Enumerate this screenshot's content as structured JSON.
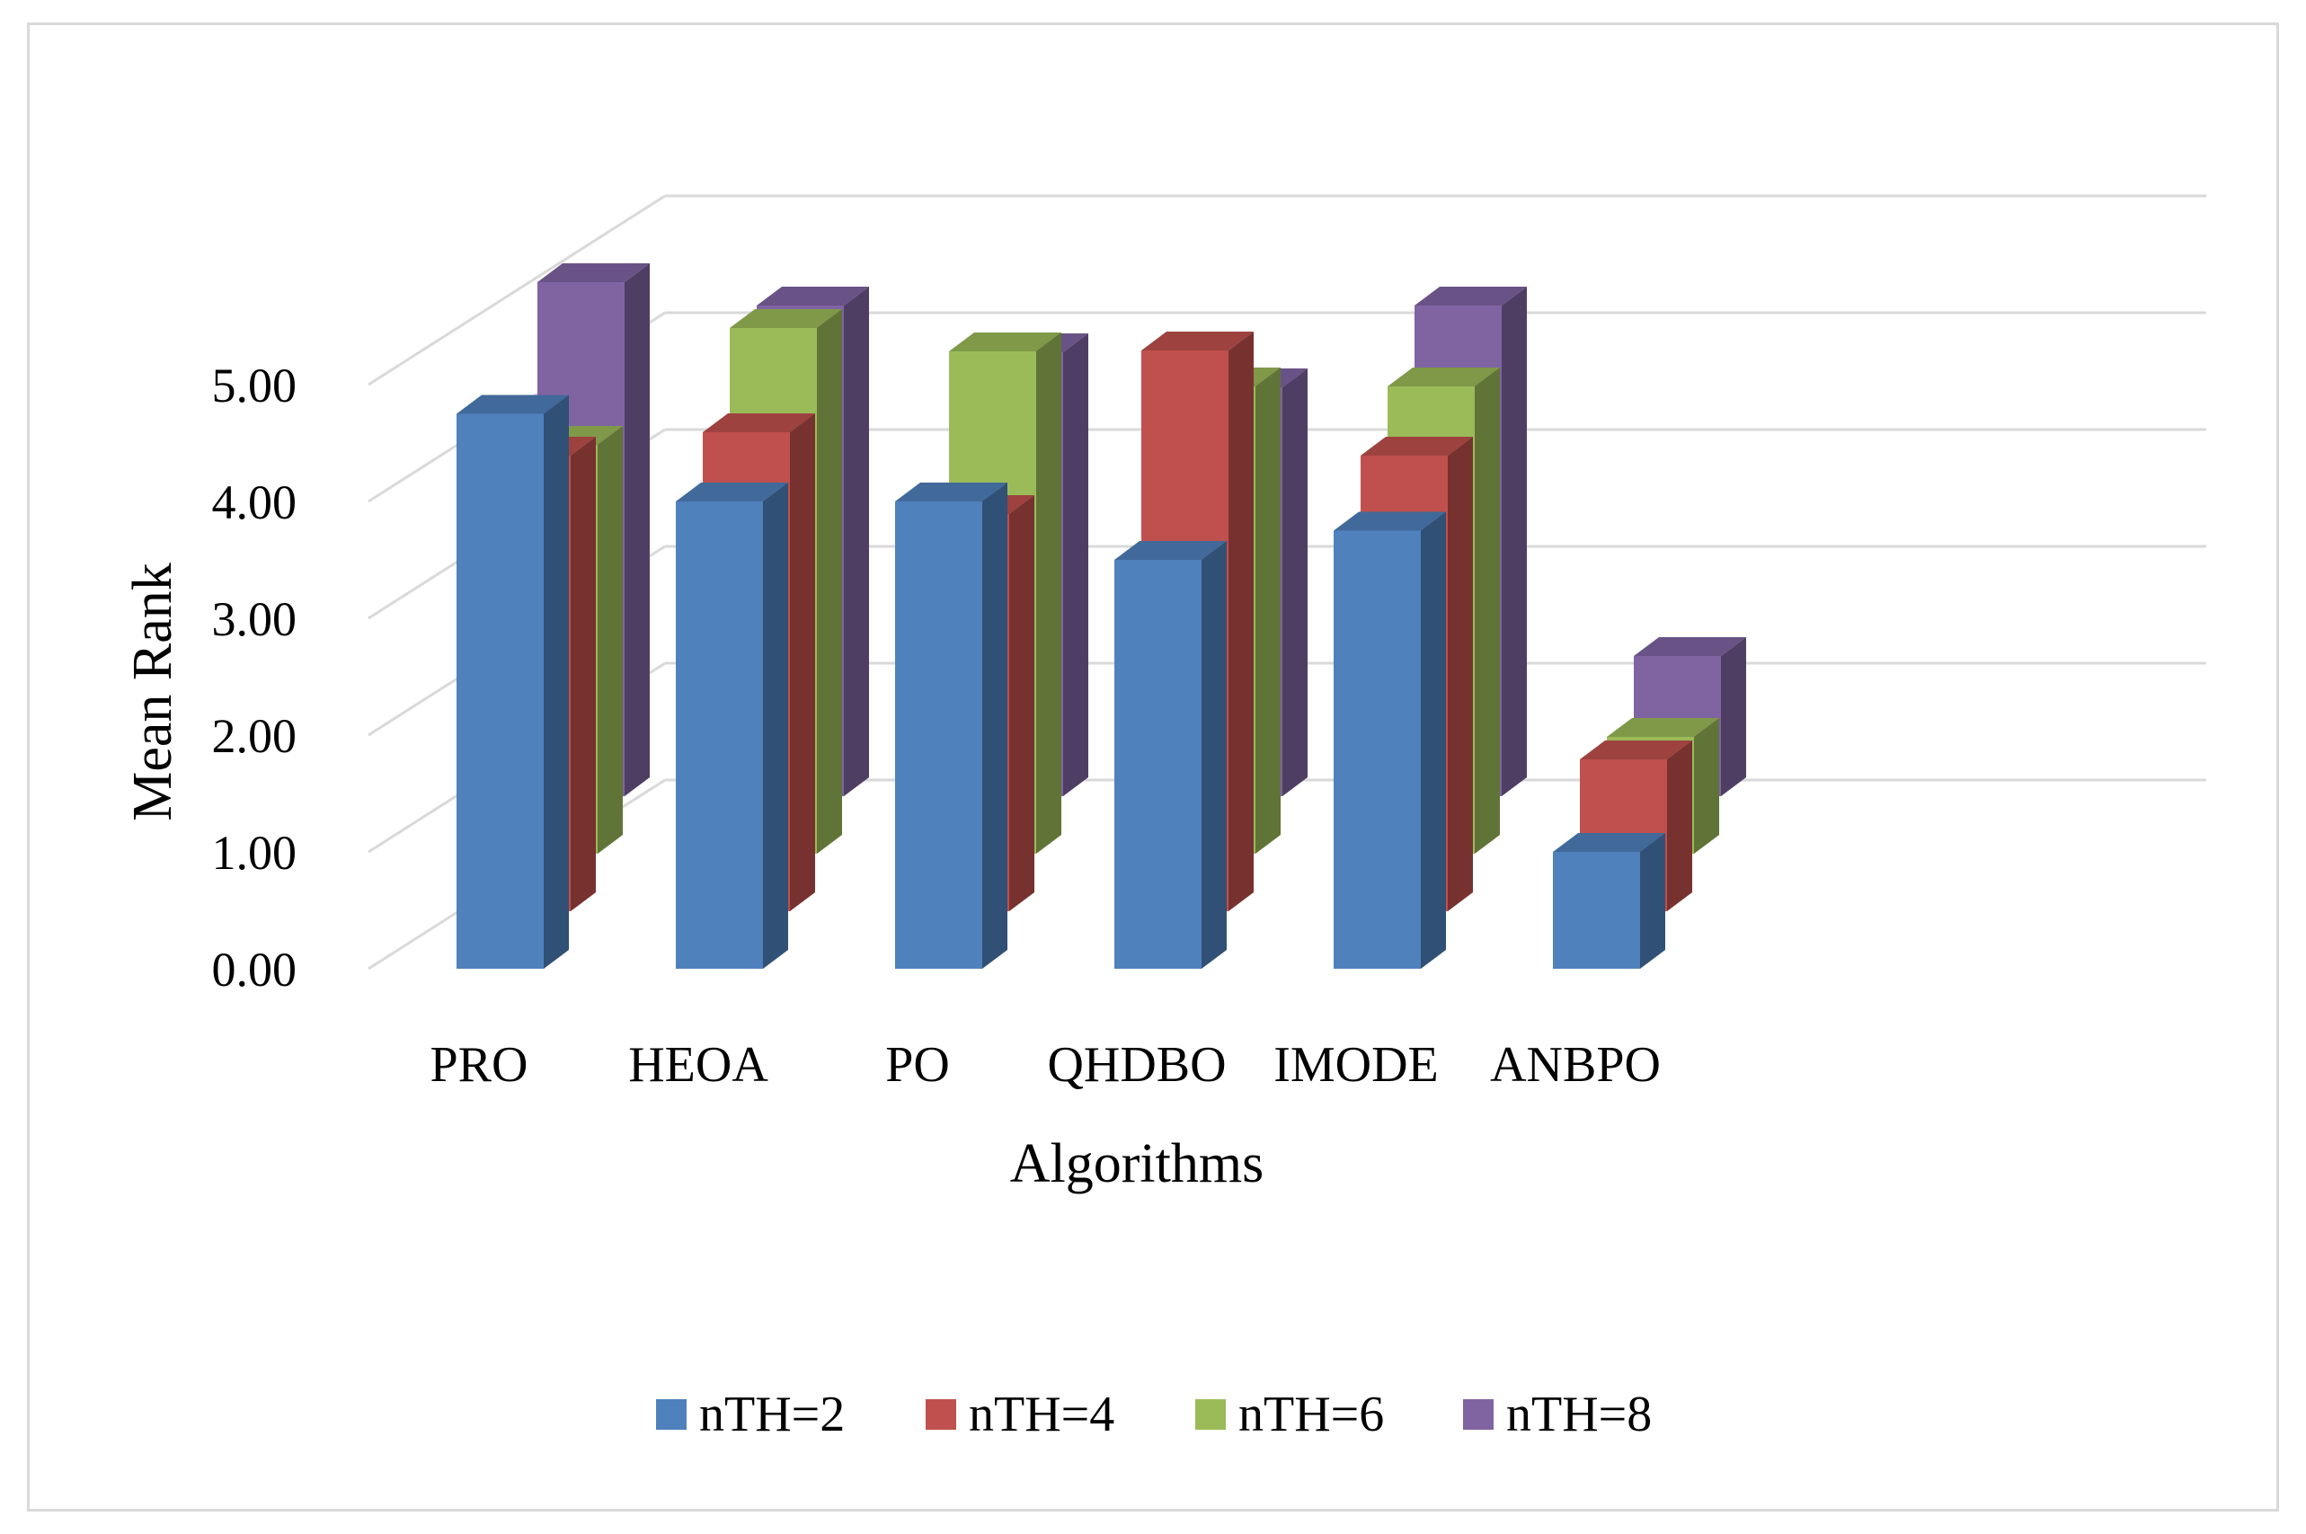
{
  "chart_data": {
    "type": "bar",
    "title": "",
    "xlabel": "Algorithms",
    "ylabel": "Mean Rank",
    "ylim": [
      0,
      5
    ],
    "yticks": [
      "0.00",
      "1.00",
      "2.00",
      "3.00",
      "4.00",
      "5.00"
    ],
    "categories": [
      "PRO",
      "HEOA",
      "PO",
      "QHDBO",
      "IMODE",
      "ANBPO"
    ],
    "series": [
      {
        "name": "nTH=2",
        "color": "#4F81BD",
        "values": [
          4.75,
          4.0,
          4.0,
          3.5,
          3.75,
          1.0
        ]
      },
      {
        "name": "nTH=4",
        "color": "#C0504D",
        "values": [
          3.9,
          4.1,
          3.4,
          4.8,
          3.9,
          1.3
        ]
      },
      {
        "name": "nTH=6",
        "color": "#9BBB59",
        "values": [
          3.5,
          4.5,
          4.3,
          4.0,
          4.0,
          1.0
        ]
      },
      {
        "name": "nTH=8",
        "color": "#8064A2",
        "values": [
          4.4,
          4.2,
          3.8,
          3.5,
          4.2,
          1.2
        ]
      }
    ],
    "legend": "bottom",
    "grid": true,
    "style": "3d-clustered-columns"
  }
}
